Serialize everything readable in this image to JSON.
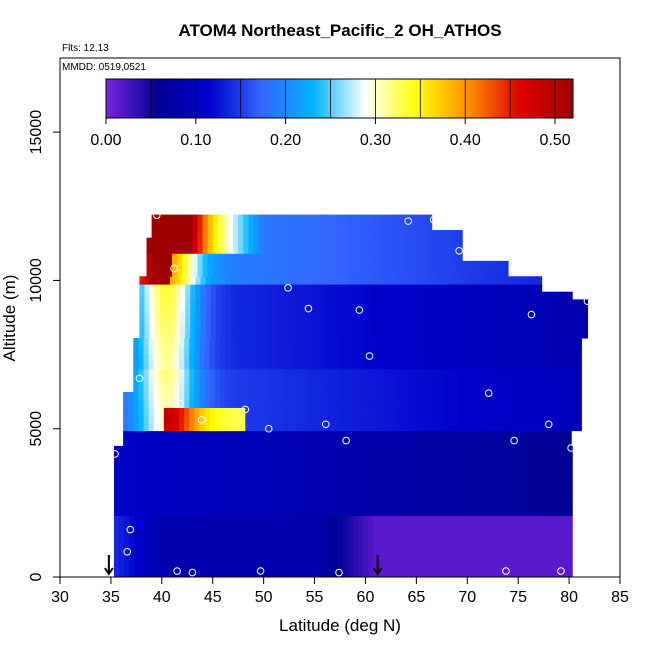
{
  "chart_data": {
    "type": "heatmap",
    "title": "ATOM4 Northeast_Pacific_2 OH_ATHOS",
    "annotations": [
      "Flts: 12,13",
      "MMDD: 0519,0521"
    ],
    "xlabel": "Latitude (deg N)",
    "ylabel": "Altitude (m)",
    "xlim": [
      30,
      85
    ],
    "ylim": [
      0,
      17500
    ],
    "x_ticks": [
      30,
      35,
      40,
      45,
      50,
      55,
      60,
      65,
      70,
      75,
      80,
      85
    ],
    "y_ticks": [
      0,
      5000,
      10000,
      15000
    ],
    "colorbar": {
      "min": 0.0,
      "max": 0.52,
      "ticks": [
        0.0,
        0.1,
        0.2,
        0.3,
        0.4,
        0.5
      ],
      "tick_labels": [
        "0.00",
        "0.10",
        "0.20",
        "0.30",
        "0.40",
        "0.50"
      ],
      "stops": [
        "#7b22e0",
        "#000096",
        "#0000cc",
        "#3366ff",
        "#00b4ff",
        "#ffffff",
        "#ffff00",
        "#ff8c00",
        "#dd0000",
        "#a00000"
      ],
      "placement": "top-inside"
    },
    "grid": false,
    "sample_points": [
      {
        "x": 39.5,
        "y": 12200
      },
      {
        "x": 64.2,
        "y": 12000
      },
      {
        "x": 66.7,
        "y": 12050
      },
      {
        "x": 69.2,
        "y": 11000
      },
      {
        "x": 41.2,
        "y": 10400
      },
      {
        "x": 52.4,
        "y": 9750
      },
      {
        "x": 54.4,
        "y": 9050
      },
      {
        "x": 59.4,
        "y": 9000
      },
      {
        "x": 76.3,
        "y": 8850
      },
      {
        "x": 81.8,
        "y": 9300
      },
      {
        "x": 60.4,
        "y": 7450
      },
      {
        "x": 37.8,
        "y": 6700
      },
      {
        "x": 72.1,
        "y": 6200
      },
      {
        "x": 41.8,
        "y": 5850
      },
      {
        "x": 48.2,
        "y": 5650
      },
      {
        "x": 43.9,
        "y": 5300
      },
      {
        "x": 50.5,
        "y": 5000
      },
      {
        "x": 56.1,
        "y": 5150
      },
      {
        "x": 58.1,
        "y": 4600
      },
      {
        "x": 74.6,
        "y": 4600
      },
      {
        "x": 78.0,
        "y": 5150
      },
      {
        "x": 80.2,
        "y": 4350
      },
      {
        "x": 35.4,
        "y": 4150
      },
      {
        "x": 36.9,
        "y": 1600
      },
      {
        "x": 36.6,
        "y": 850
      },
      {
        "x": 41.5,
        "y": 200
      },
      {
        "x": 43.0,
        "y": 150
      },
      {
        "x": 49.7,
        "y": 200
      },
      {
        "x": 57.4,
        "y": 150
      },
      {
        "x": 73.8,
        "y": 200
      },
      {
        "x": 79.2,
        "y": 200
      }
    ],
    "arrows": [
      {
        "x": 34.8,
        "y": 0
      },
      {
        "x": 61.2,
        "y": 0
      }
    ]
  }
}
